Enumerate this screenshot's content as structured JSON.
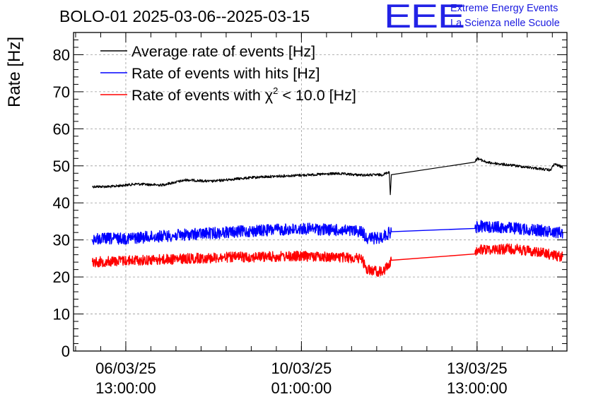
{
  "header": {
    "title": "BOLO-01 2025-03-06--2025-03-15",
    "logo_text": "EEE",
    "org_line1": "Extreme Energy Events",
    "org_line2": "La Scienza nelle Scuole",
    "logo_color": "#2222e6"
  },
  "chart_data": {
    "type": "line",
    "title": "BOLO-01 2025-03-06--2025-03-15",
    "xlabel": "",
    "ylabel": "Rate [Hz]",
    "ylim": [
      0,
      86
    ],
    "xlim": [
      "2025-03-05 12:00",
      "2025-03-15 08:00"
    ],
    "yticks": [
      0,
      10,
      20,
      30,
      40,
      50,
      60,
      70,
      80
    ],
    "xticks": [
      {
        "t": "2025-03-06 13:00",
        "label": [
          "06/03/25",
          "13:00:00"
        ]
      },
      {
        "t": "2025-03-10 01:00",
        "label": [
          "10/03/25",
          "01:00:00"
        ]
      },
      {
        "t": "2025-03-13 13:00",
        "label": [
          "13/03/25",
          "13:00:00"
        ]
      }
    ],
    "grid": true,
    "legend_position": "top-left",
    "series": [
      {
        "name": "Average rate of events [Hz]",
        "color": "#000000",
        "noise": 0.35,
        "points": [
          [
            "2025-03-05 21:00",
            44.4
          ],
          [
            "2025-03-06 06:00",
            44.4
          ],
          [
            "2025-03-06 18:00",
            45.1
          ],
          [
            "2025-03-07 06:00",
            44.8
          ],
          [
            "2025-03-07 18:00",
            46.2
          ],
          [
            "2025-03-08 06:00",
            45.8
          ],
          [
            "2025-03-08 18:00",
            46.5
          ],
          [
            "2025-03-09 06:00",
            47.0
          ],
          [
            "2025-03-09 18:00",
            47.3
          ],
          [
            "2025-03-10 06:00",
            47.6
          ],
          [
            "2025-03-10 18:00",
            47.9
          ],
          [
            "2025-03-11 06:00",
            47.5
          ],
          [
            "2025-03-11 16:00",
            47.6
          ],
          [
            "2025-03-11 19:00",
            48.4
          ],
          [
            "2025-03-11 19:30",
            42.2
          ],
          [
            "2025-03-11 20:00",
            47.6
          ],
          [
            "2025-03-13 12:00",
            51.0
          ],
          [
            "2025-03-13 13:00",
            52.0
          ],
          [
            "2025-03-13 18:00",
            50.9
          ],
          [
            "2025-03-14 06:00",
            50.1
          ],
          [
            "2025-03-14 18:00",
            49.3
          ],
          [
            "2025-03-15 00:00",
            48.8
          ],
          [
            "2025-03-15 02:00",
            50.5
          ],
          [
            "2025-03-15 06:00",
            49.6
          ]
        ]
      },
      {
        "name": "Rate of events with hits [Hz]",
        "color": "#0000ff",
        "noise": 1.6,
        "points": [
          [
            "2025-03-05 21:00",
            30.2
          ],
          [
            "2025-03-06 12:00",
            30.4
          ],
          [
            "2025-03-07 12:00",
            31.2
          ],
          [
            "2025-03-08 12:00",
            32.0
          ],
          [
            "2025-03-09 12:00",
            32.7
          ],
          [
            "2025-03-10 06:00",
            33.0
          ],
          [
            "2025-03-10 18:00",
            32.6
          ],
          [
            "2025-03-11 06:00",
            32.3
          ],
          [
            "2025-03-11 08:00",
            30.6
          ],
          [
            "2025-03-11 14:00",
            30.4
          ],
          [
            "2025-03-11 20:00",
            32.2
          ],
          [
            "2025-03-13 12:00",
            33.1
          ],
          [
            "2025-03-13 14:00",
            33.7
          ],
          [
            "2025-03-14 06:00",
            33.2
          ],
          [
            "2025-03-14 18:00",
            32.6
          ],
          [
            "2025-03-15 06:00",
            32.0
          ]
        ]
      },
      {
        "name": "Rate of events with χ² < 10.0 [Hz]",
        "legend_main": "Rate of events with χ",
        "legend_sup": "2",
        "legend_tail": " < 10.0 [Hz]",
        "color": "#ff0000",
        "noise": 1.4,
        "points": [
          [
            "2025-03-05 21:00",
            24.0
          ],
          [
            "2025-03-06 12:00",
            24.4
          ],
          [
            "2025-03-07 12:00",
            24.8
          ],
          [
            "2025-03-08 12:00",
            25.3
          ],
          [
            "2025-03-09 12:00",
            25.5
          ],
          [
            "2025-03-10 06:00",
            25.6
          ],
          [
            "2025-03-10 18:00",
            25.3
          ],
          [
            "2025-03-11 06:00",
            25.0
          ],
          [
            "2025-03-11 08:00",
            22.0
          ],
          [
            "2025-03-11 16:00",
            21.3
          ],
          [
            "2025-03-11 20:00",
            24.5
          ],
          [
            "2025-03-13 12:00",
            26.2
          ],
          [
            "2025-03-13 14:00",
            27.4
          ],
          [
            "2025-03-14 06:00",
            27.6
          ],
          [
            "2025-03-14 18:00",
            26.8
          ],
          [
            "2025-03-15 06:00",
            25.4
          ]
        ]
      }
    ]
  }
}
